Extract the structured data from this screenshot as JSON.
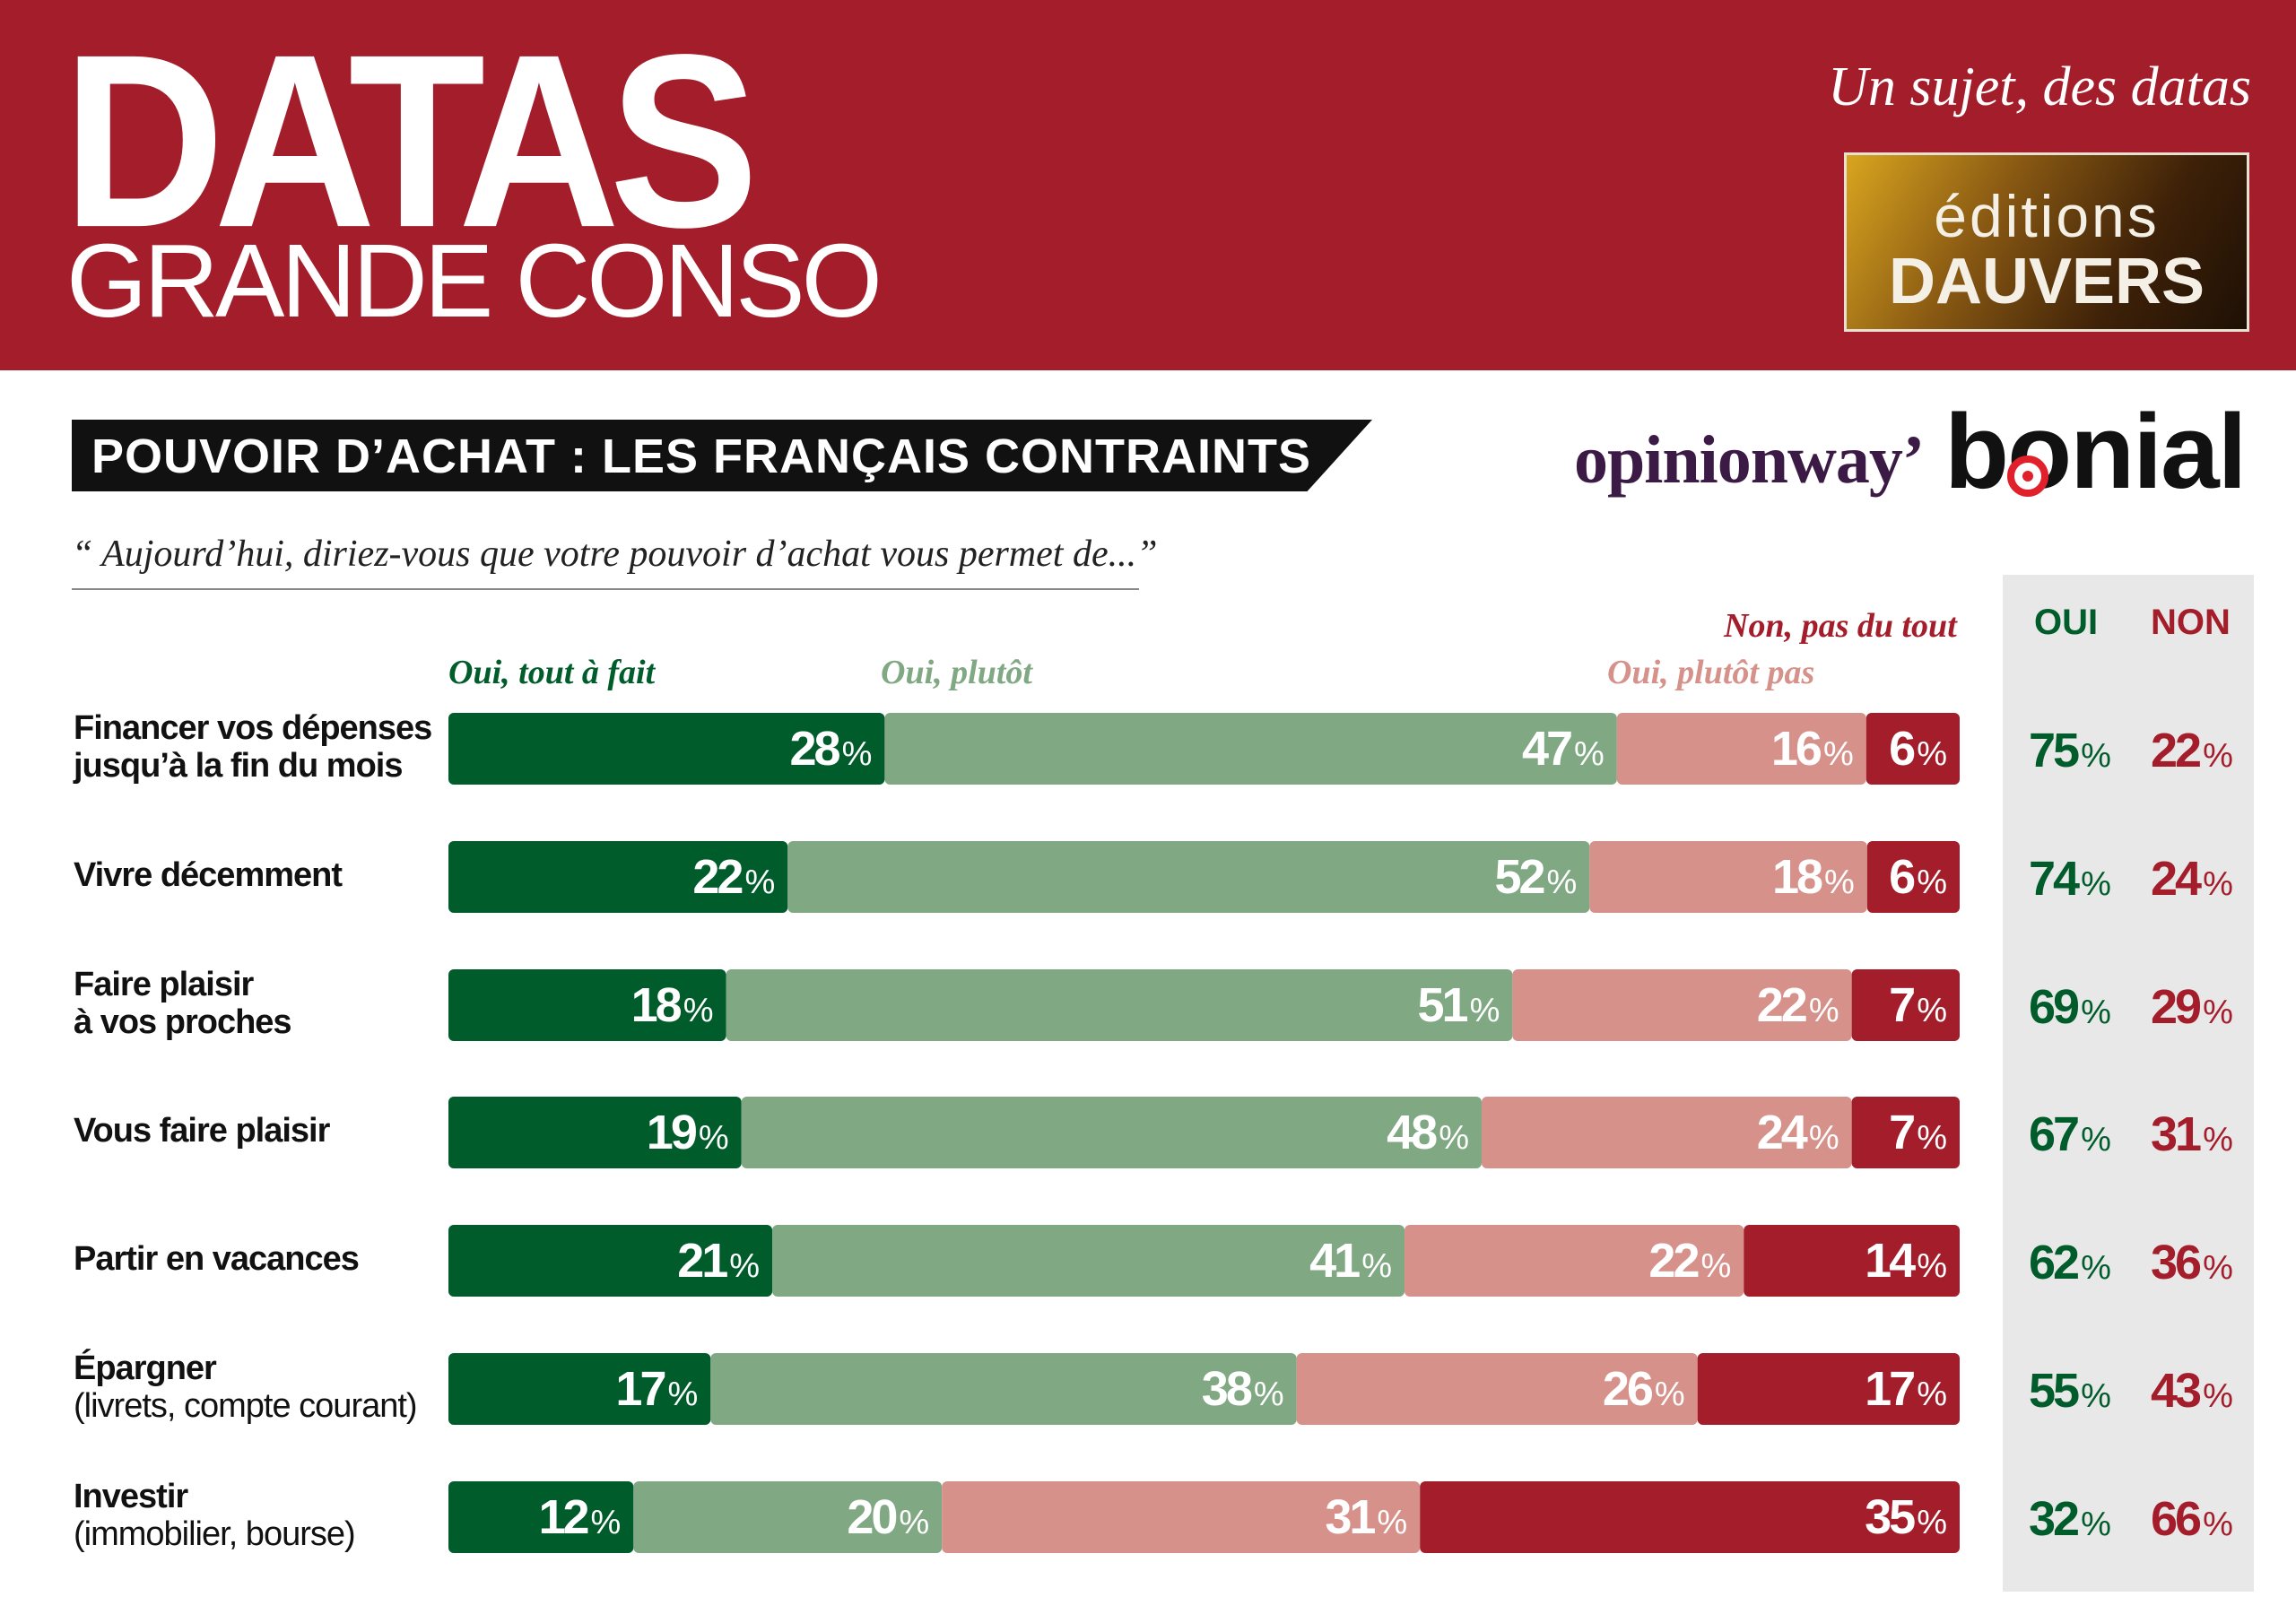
{
  "header": {
    "title": "DATAS",
    "subtitle": "GRANDE CONSO",
    "tagline": "Un sujet, des datas",
    "logo_line1": "éditions",
    "logo_line2": "DAUVERS"
  },
  "banner": {
    "title": "POUVOIR D’ACHAT : LES FRANÇAIS CONTRAINTS"
  },
  "sponsors": {
    "opinionway": "opinionway’",
    "bonial": "bonial"
  },
  "question": "“ Aujourd’hui, diriez-vous que votre pouvoir d’achat vous permet de...”",
  "summary_headers": {
    "oui": "OUI",
    "non": "NON"
  },
  "colors": {
    "header_bg": "#a31d2b",
    "oui_tout_a_fait": "#005c2b",
    "oui_plutot": "#7fa883",
    "non_plutot_pas": "#d6918a",
    "non_pas_du_tout": "#a31d2b",
    "summary_oui": "#005c2b",
    "summary_non": "#a31d2b"
  },
  "chart_data": {
    "type": "bar",
    "orientation": "horizontal-stacked-100",
    "unit": "%",
    "categories": [
      [
        "Financer vos dépenses",
        "jusqu’à la fin du mois"
      ],
      [
        "Vivre décemment"
      ],
      [
        "Faire plaisir",
        "à vos proches"
      ],
      [
        "Vous faire plaisir"
      ],
      [
        "Partir en vacances"
      ],
      [
        "Épargner",
        "(livrets, compte courant)"
      ],
      [
        "Investir",
        "(immobilier, bourse)"
      ]
    ],
    "series": [
      {
        "name": "Oui, tout à fait",
        "values": [
          28,
          22,
          18,
          19,
          21,
          17,
          12
        ]
      },
      {
        "name": "Oui, plutôt",
        "values": [
          47,
          52,
          51,
          48,
          41,
          38,
          20
        ]
      },
      {
        "name": "Oui, plutôt pas",
        "values": [
          16,
          18,
          22,
          24,
          22,
          26,
          31
        ]
      },
      {
        "name": "Non, pas du tout",
        "values": [
          6,
          6,
          7,
          7,
          14,
          17,
          35
        ]
      }
    ],
    "totals": {
      "OUI": [
        75,
        74,
        69,
        67,
        62,
        55,
        32
      ],
      "NON": [
        22,
        24,
        29,
        31,
        36,
        43,
        66
      ]
    }
  }
}
